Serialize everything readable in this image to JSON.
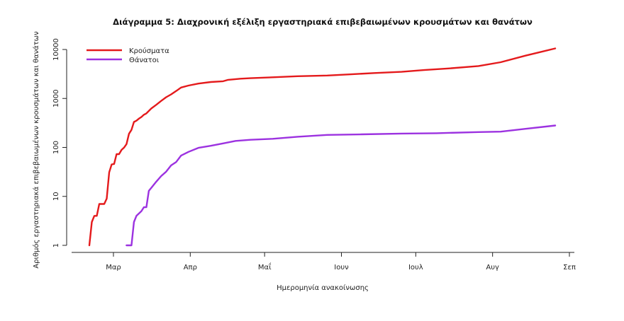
{
  "chart_data": {
    "type": "line",
    "title": "Διάγραμμα 5: Διαχρονική εξέλιξη εργαστηριακά επιβεβαιωμένων κρουσμάτων και θανάτων",
    "xlabel": "Ημερομηνία ανακοίνωσης",
    "ylabel": "Αριθμός εργαστηριακά επιβεβαιωμένων κρουσμάτων και θανάτων",
    "yscale": "log",
    "ylim": [
      1,
      10000
    ],
    "yticks": [
      {
        "value": 1,
        "label": "1"
      },
      {
        "value": 10,
        "label": "10"
      },
      {
        "value": 100,
        "label": "100"
      },
      {
        "value": 1000,
        "label": "1000"
      },
      {
        "value": 10000,
        "label": "10000"
      }
    ],
    "xlim": [
      "2020-02-26",
      "2020-09-01"
    ],
    "xticks": [
      {
        "date": "2020-03-01",
        "label": "Μαρ"
      },
      {
        "date": "2020-04-01",
        "label": "Απρ"
      },
      {
        "date": "2020-05-01",
        "label": "Μαΐ"
      },
      {
        "date": "2020-06-01",
        "label": "Ιουν"
      },
      {
        "date": "2020-07-01",
        "label": "Ιουλ"
      },
      {
        "date": "2020-08-01",
        "label": "Αυγ"
      },
      {
        "date": "2020-09-01",
        "label": "Σεπ"
      }
    ],
    "legend_position": "top-left",
    "grid": false,
    "series": [
      {
        "name": "Κρούσματα",
        "color": "#e41a1c",
        "points": [
          [
            "2020-02-26",
            1
          ],
          [
            "2020-02-27",
            3
          ],
          [
            "2020-02-28",
            4
          ],
          [
            "2020-02-29",
            4
          ],
          [
            "2020-03-01",
            7
          ],
          [
            "2020-03-03",
            7
          ],
          [
            "2020-03-04",
            9
          ],
          [
            "2020-03-05",
            31
          ],
          [
            "2020-03-06",
            45
          ],
          [
            "2020-03-07",
            46
          ],
          [
            "2020-03-08",
            73
          ],
          [
            "2020-03-09",
            73
          ],
          [
            "2020-03-10",
            89
          ],
          [
            "2020-03-11",
            99
          ],
          [
            "2020-03-12",
            117
          ],
          [
            "2020-03-13",
            190
          ],
          [
            "2020-03-14",
            228
          ],
          [
            "2020-03-15",
            331
          ],
          [
            "2020-03-16",
            352
          ],
          [
            "2020-03-17",
            387
          ],
          [
            "2020-03-18",
            418
          ],
          [
            "2020-03-19",
            464
          ],
          [
            "2020-03-20",
            495
          ],
          [
            "2020-03-22",
            624
          ],
          [
            "2020-03-24",
            743
          ],
          [
            "2020-03-26",
            892
          ],
          [
            "2020-03-28",
            1061
          ],
          [
            "2020-03-30",
            1212
          ],
          [
            "2020-04-01",
            1415
          ],
          [
            "2020-04-03",
            1673
          ],
          [
            "2020-04-06",
            1832
          ],
          [
            "2020-04-10",
            2011
          ],
          [
            "2020-04-15",
            2170
          ],
          [
            "2020-04-20",
            2245
          ],
          [
            "2020-04-22",
            2401
          ],
          [
            "2020-04-27",
            2534
          ],
          [
            "2020-05-01",
            2591
          ],
          [
            "2020-05-10",
            2710
          ],
          [
            "2020-05-20",
            2850
          ],
          [
            "2020-06-01",
            2937
          ],
          [
            "2020-06-10",
            3100
          ],
          [
            "2020-06-20",
            3300
          ],
          [
            "2020-07-01",
            3500
          ],
          [
            "2020-07-10",
            3800
          ],
          [
            "2020-07-20",
            4100
          ],
          [
            "2020-08-01",
            4600
          ],
          [
            "2020-08-10",
            5500
          ],
          [
            "2020-08-20",
            7500
          ],
          [
            "2020-09-01",
            10500
          ]
        ]
      },
      {
        "name": "Θάνατοι",
        "color": "#9c32e0",
        "points": [
          [
            "2020-03-12",
            1
          ],
          [
            "2020-03-14",
            1
          ],
          [
            "2020-03-15",
            3
          ],
          [
            "2020-03-16",
            4
          ],
          [
            "2020-03-18",
            5
          ],
          [
            "2020-03-19",
            6
          ],
          [
            "2020-03-20",
            6
          ],
          [
            "2020-03-21",
            13
          ],
          [
            "2020-03-22",
            15
          ],
          [
            "2020-03-24",
            20
          ],
          [
            "2020-03-26",
            26
          ],
          [
            "2020-03-28",
            32
          ],
          [
            "2020-03-30",
            43
          ],
          [
            "2020-04-01",
            50
          ],
          [
            "2020-04-03",
            68
          ],
          [
            "2020-04-06",
            81
          ],
          [
            "2020-04-10",
            98
          ],
          [
            "2020-04-15",
            108
          ],
          [
            "2020-04-20",
            121
          ],
          [
            "2020-04-25",
            136
          ],
          [
            "2020-05-01",
            143
          ],
          [
            "2020-05-10",
            150
          ],
          [
            "2020-05-20",
            165
          ],
          [
            "2020-06-01",
            180
          ],
          [
            "2020-06-15",
            185
          ],
          [
            "2020-07-01",
            192
          ],
          [
            "2020-07-15",
            195
          ],
          [
            "2020-08-01",
            206
          ],
          [
            "2020-08-10",
            210
          ],
          [
            "2020-08-20",
            240
          ],
          [
            "2020-09-01",
            280
          ]
        ]
      }
    ]
  }
}
